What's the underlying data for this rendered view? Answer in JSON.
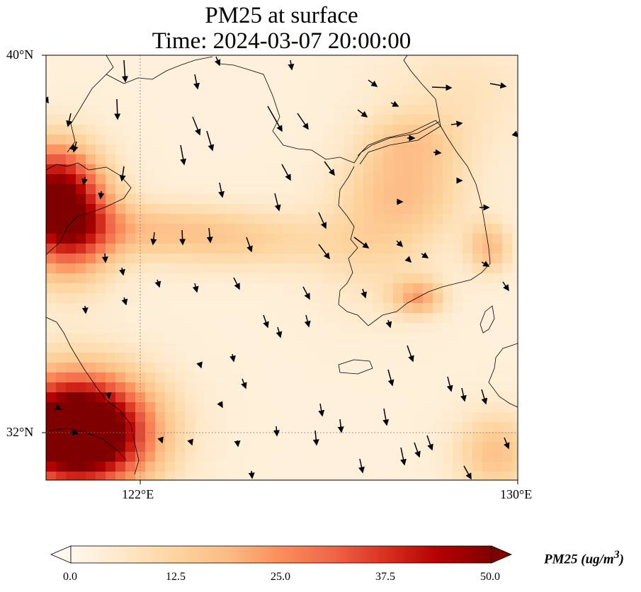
{
  "title": {
    "line1": "PM25 at surface",
    "line2": "Time: 2024-03-07 20:00:00"
  },
  "axes": {
    "lat_ticks": [
      "40°N",
      "32°N"
    ],
    "lon_ticks": [
      "122°E",
      "130°E"
    ],
    "lat_range": [
      31.0,
      40.0
    ],
    "lon_range": [
      120.0,
      130.0
    ],
    "gridlines": "dotted"
  },
  "colorbar": {
    "title": "PM25 (ug/m³)",
    "title_plain": "PM25 (ug/m",
    "title_sup": "3",
    "title_close": ")",
    "tick_labels": [
      "0.0",
      "12.5",
      "25.0",
      "37.5",
      "50.0"
    ],
    "range": [
      0,
      50
    ],
    "extend": "both",
    "colormap": "OrRd",
    "colors": [
      "#fff7ec",
      "#fee8c8",
      "#fdd49e",
      "#fdbb84",
      "#fc8d59",
      "#ef6548",
      "#d7301f",
      "#b30000",
      "#7f0000"
    ]
  },
  "map": {
    "field": "PM25",
    "level": "surface",
    "vectors": "wind arrows",
    "coastline_color": "#000000"
  }
}
